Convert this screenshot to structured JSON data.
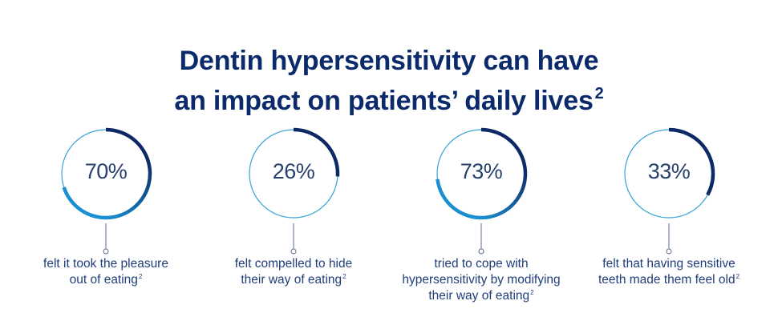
{
  "title": {
    "line1": "Dentin hypersensitivity can have",
    "line2": "an impact on patients’ daily lives",
    "reference": "2"
  },
  "colors": {
    "title": "#0b2a6b",
    "ring_track": "#3aa3d8",
    "arc_dark": "#0d2a66",
    "arc_light": "#1a8fd1",
    "connector": "#5a6c8a",
    "text": "#1f3e7a"
  },
  "chart_data": {
    "type": "donut",
    "items": [
      {
        "value": 70,
        "label": "70%",
        "caption_lines": [
          "felt it took the pleasure",
          "out of eating"
        ],
        "reference": "2"
      },
      {
        "value": 26,
        "label": "26%",
        "caption_lines": [
          "felt compelled to hide",
          "their way of eating"
        ],
        "reference": "2"
      },
      {
        "value": 73,
        "label": "73%",
        "caption_lines": [
          "tried to cope with",
          "hypersensitivity by modifying",
          "their way of eating"
        ],
        "reference": "2"
      },
      {
        "value": 33,
        "label": "33%",
        "caption_lines": [
          "felt that having sensitive",
          "teeth made them feel old"
        ],
        "reference": "2"
      }
    ]
  }
}
